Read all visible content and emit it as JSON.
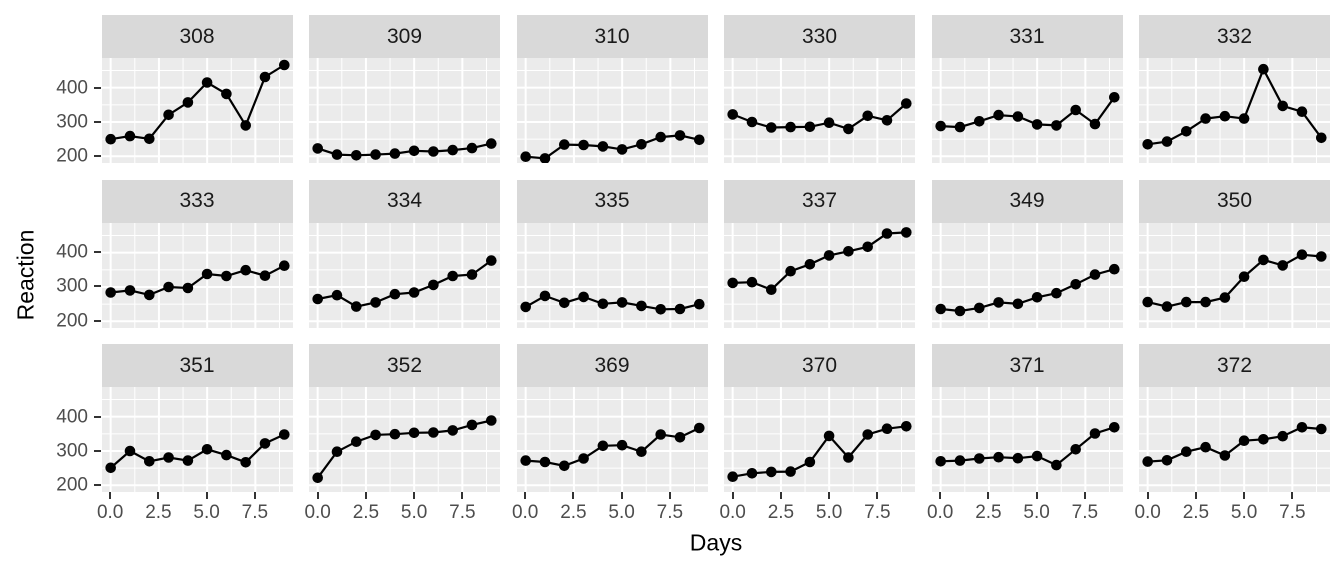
{
  "chart_data": {
    "type": "line",
    "title": "",
    "xlabel": "Days",
    "ylabel": "Reaction",
    "x": [
      0,
      1,
      2,
      3,
      4,
      5,
      6,
      7,
      8,
      9
    ],
    "xlim": [
      -0.45,
      9.45
    ],
    "ylim": [
      180.5,
      486.5
    ],
    "x_ticks": {
      "values": [
        0,
        2.5,
        5,
        7.5
      ],
      "labels": [
        "0.0",
        "2.5",
        "5.0",
        "7.5"
      ]
    },
    "y_ticks": {
      "values": [
        200,
        300,
        400
      ],
      "labels": [
        "200",
        "300",
        "400"
      ]
    },
    "x_minor": [
      1.25,
      3.75,
      6.25,
      8.75
    ],
    "y_minor": [
      250,
      350,
      450
    ],
    "grid": true,
    "legend": "none",
    "facet_grid": {
      "rows": 3,
      "cols": 6
    },
    "facets": [
      {
        "label": "308",
        "values": [
          250,
          259,
          251,
          321,
          357,
          415,
          382,
          290,
          431,
          466
        ]
      },
      {
        "label": "309",
        "values": [
          223,
          205,
          203,
          205,
          208,
          216,
          214,
          218,
          224,
          237
        ]
      },
      {
        "label": "310",
        "values": [
          199,
          194,
          234,
          233,
          229,
          220,
          235,
          256,
          261,
          248
        ]
      },
      {
        "label": "330",
        "values": [
          322,
          300,
          284,
          285,
          286,
          298,
          280,
          318,
          305,
          354
        ]
      },
      {
        "label": "331",
        "values": [
          288,
          285,
          302,
          320,
          316,
          293,
          290,
          335,
          294,
          372
        ]
      },
      {
        "label": "332",
        "values": [
          235,
          243,
          273,
          310,
          317,
          310,
          454,
          347,
          330,
          254
        ]
      },
      {
        "label": "333",
        "values": [
          284,
          290,
          277,
          300,
          297,
          338,
          332,
          349,
          333,
          362
        ]
      },
      {
        "label": "334",
        "values": [
          265,
          276,
          243,
          255,
          279,
          284,
          306,
          332,
          336,
          377
        ]
      },
      {
        "label": "335",
        "values": [
          242,
          274,
          254,
          271,
          251,
          255,
          245,
          235,
          236,
          250
        ]
      },
      {
        "label": "337",
        "values": [
          312,
          314,
          292,
          346,
          366,
          392,
          404,
          417,
          456,
          459
        ]
      },
      {
        "label": "349",
        "values": [
          236,
          230,
          239,
          255,
          251,
          270,
          282,
          308,
          336,
          352
        ]
      },
      {
        "label": "350",
        "values": [
          256,
          243,
          256,
          256,
          269,
          330,
          379,
          363,
          394,
          389
        ]
      },
      {
        "label": "351",
        "values": [
          251,
          300,
          270,
          281,
          272,
          305,
          288,
          267,
          322,
          348
        ]
      },
      {
        "label": "352",
        "values": [
          222,
          298,
          327,
          347,
          349,
          353,
          354,
          360,
          376,
          389
        ]
      },
      {
        "label": "369",
        "values": [
          272,
          268,
          257,
          278,
          315,
          317,
          298,
          348,
          340,
          367
        ]
      },
      {
        "label": "370",
        "values": [
          225,
          235,
          239,
          240,
          268,
          344,
          281,
          348,
          365,
          372
        ]
      },
      {
        "label": "371",
        "values": [
          270,
          272,
          278,
          282,
          279,
          285,
          259,
          305,
          351,
          369
        ]
      },
      {
        "label": "372",
        "values": [
          269,
          273,
          298,
          311,
          287,
          330,
          334,
          343,
          369,
          364
        ]
      }
    ]
  },
  "theme": {
    "panel_background": "#EBEBEB",
    "strip_background": "#D9D9D9",
    "grid_color": "#FFFFFF",
    "line_color": "#000000",
    "point_color": "#000000",
    "tick_text_color": "#4D4D4D",
    "tick_mark_color": "#333333",
    "strip_text_color": "#1A1A1A",
    "axis_title_color": "#000000"
  }
}
